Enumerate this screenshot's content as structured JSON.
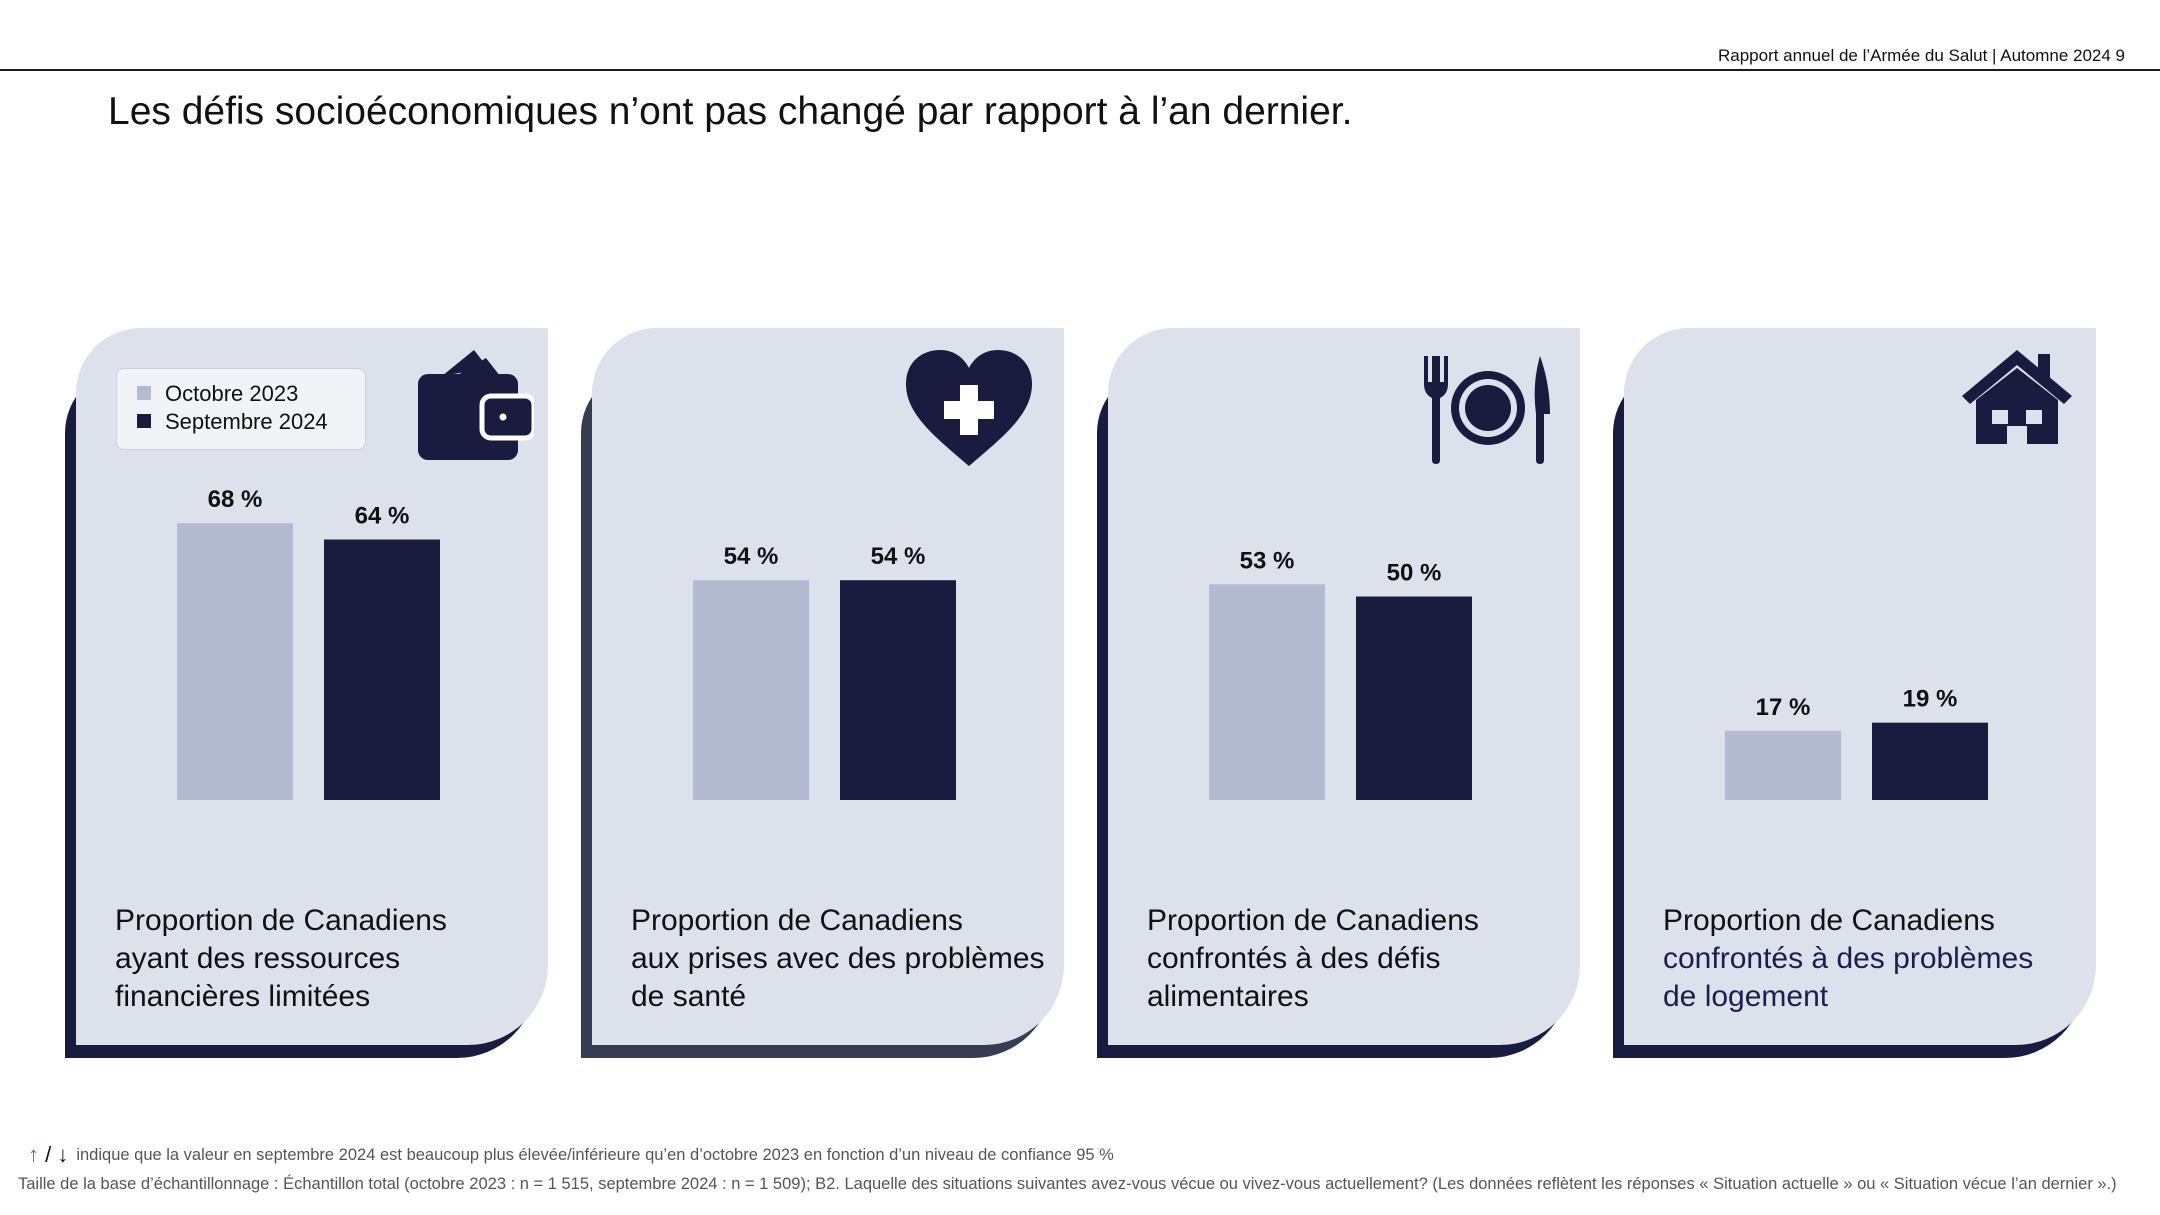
{
  "header": {
    "report_title": "Rapport annuel de l’Armée du Salut | Automne 2024  9"
  },
  "page_title": "Les défis socioéconomiques n’ont pas changé par rapport à l’an dernier.",
  "colors": {
    "light_bar": "#b3bbd0",
    "dark_bar": "#1a1c3f",
    "card_bg": "#dde1ec",
    "accent_text": "#1b1f4d",
    "arrow_up": "#e53935"
  },
  "legend": {
    "items": [
      {
        "label": "Octobre 2023",
        "color": "#b3bbd0"
      },
      {
        "label": "Septembre 2024",
        "color": "#1a1c3f"
      }
    ]
  },
  "cards": [
    {
      "icon": "wallet-icon",
      "caption": [
        "Proportion de Canadiens",
        "ayant des ressources",
        "financières limitées"
      ]
    },
    {
      "icon": "heart-plus-icon",
      "caption": [
        "Proportion de Canadiens",
        "aux prises avec des problèmes",
        "de santé"
      ]
    },
    {
      "icon": "plate-fork-knife-icon",
      "caption": [
        "Proportion de Canadiens",
        "confrontés à des défis",
        "alimentaires"
      ]
    },
    {
      "icon": "house-icon",
      "caption": [
        "Proportion de Canadiens",
        "confrontés à des problèmes",
        "de logement"
      ]
    }
  ],
  "chart_data": [
    {
      "type": "bar",
      "title": "Proportion de Canadiens ayant des ressources financières limitées",
      "series": [
        {
          "name": "Octobre 2023",
          "values": [
            68
          ],
          "labels": [
            "68 %"
          ]
        },
        {
          "name": "Septembre 2024",
          "values": [
            64
          ],
          "labels": [
            "64 %"
          ]
        }
      ],
      "unit": "%"
    },
    {
      "type": "bar",
      "title": "Proportion de Canadiens aux prises avec des problèmes de santé",
      "series": [
        {
          "name": "Octobre 2023",
          "values": [
            54
          ],
          "labels": [
            "54 %"
          ]
        },
        {
          "name": "Septembre 2024",
          "values": [
            54
          ],
          "labels": [
            "54 %"
          ]
        }
      ],
      "unit": "%"
    },
    {
      "type": "bar",
      "title": "Proportion de Canadiens confrontés à des défis alimentaires",
      "series": [
        {
          "name": "Octobre 2023",
          "values": [
            53
          ],
          "labels": [
            "53 %"
          ]
        },
        {
          "name": "Septembre 2024",
          "values": [
            50
          ],
          "labels": [
            "50 %"
          ]
        }
      ],
      "unit": "%"
    },
    {
      "type": "bar",
      "title": "Proportion de Canadiens confrontés à des problèmes de logement",
      "series": [
        {
          "name": "Octobre 2023",
          "values": [
            17
          ],
          "labels": [
            "17 %"
          ]
        },
        {
          "name": "Septembre 2024",
          "values": [
            19
          ],
          "labels": [
            "19 %"
          ]
        }
      ],
      "unit": "%"
    }
  ],
  "footnotes": {
    "arrows_text": "indique que la valeur en septembre 2024 est beaucoup plus élevée/inférieure qu’en d’octobre 2023 en fonction d’un niveau de confiance 95 %",
    "base_text": "Taille de la base d’échantillonnage : Échantillon total (octobre 2023 : n = 1 515, septembre 2024 : n = 1 509); B2. Laquelle des situations suivantes avez-vous vécue ou vivez-vous actuellement? (Les données reflètent les réponses « Situation actuelle » ou « Situation vécue l’an dernier ».)"
  }
}
